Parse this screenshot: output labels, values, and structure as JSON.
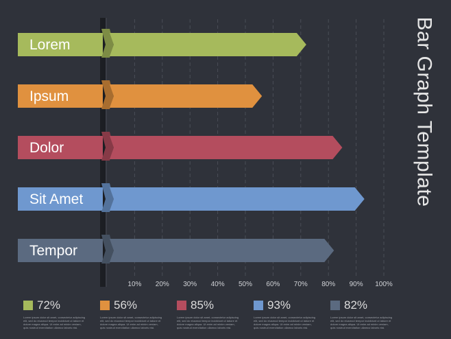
{
  "title": "Bar Graph Template",
  "chart_data": {
    "type": "bar",
    "orientation": "horizontal",
    "categories": [
      "Lorem",
      "Ipsum",
      "Dolor",
      "Sit Amet",
      "Tempor"
    ],
    "values": [
      72,
      56,
      85,
      93,
      82
    ],
    "colors": [
      "#a6ba5c",
      "#e0913f",
      "#b44d5e",
      "#6f98cf",
      "#5b6a80"
    ],
    "xlim": [
      0,
      100
    ],
    "ticks": [
      10,
      20,
      30,
      40,
      50,
      60,
      70,
      80,
      90,
      100
    ],
    "tick_labels": [
      "10%",
      "20%",
      "30%",
      "40%",
      "50%",
      "60%",
      "70%",
      "80%",
      "90%",
      "100%"
    ],
    "grid": "dashed vertical"
  },
  "legend": [
    {
      "label": "72%",
      "color": "#a6ba5c",
      "text": "Lorem ipsum dolor sit amet, consectetur adipiscing elit, sed do eiusmod tempor incididunt ut labore et dolore magna aliqua. Ut enim ad minim veniam, quis nostrud exercitation ullamco laboris nisi."
    },
    {
      "label": "56%",
      "color": "#e0913f",
      "text": "Lorem ipsum dolor sit amet, consectetur adipiscing elit, sed do eiusmod tempor incididunt ut labore et dolore magna aliqua. Ut enim ad minim veniam, quis nostrud exercitation ullamco laboris nisi."
    },
    {
      "label": "85%",
      "color": "#b44d5e",
      "text": "Lorem ipsum dolor sit amet, consectetur adipiscing elit, sed do eiusmod tempor incididunt ut labore et dolore magna aliqua. Ut enim ad minim veniam, quis nostrud exercitation ullamco laboris nisi."
    },
    {
      "label": "93%",
      "color": "#6f98cf",
      "text": "Lorem ipsum dolor sit amet, consectetur adipiscing elit, sed do eiusmod tempor incididunt ut labore et dolore magna aliqua. Ut enim ad minim veniam, quis nostrud exercitation ullamco laboris nisi."
    },
    {
      "label": "82%",
      "color": "#5b6a80",
      "text": "Lorem ipsum dolor sit amet, consectetur adipiscing elit, sed do eiusmod tempor incididunt ut labore et dolore magna aliqua. Ut enim ad minim veniam, quis nostrud exercitation ullamco laboris nisi."
    }
  ]
}
